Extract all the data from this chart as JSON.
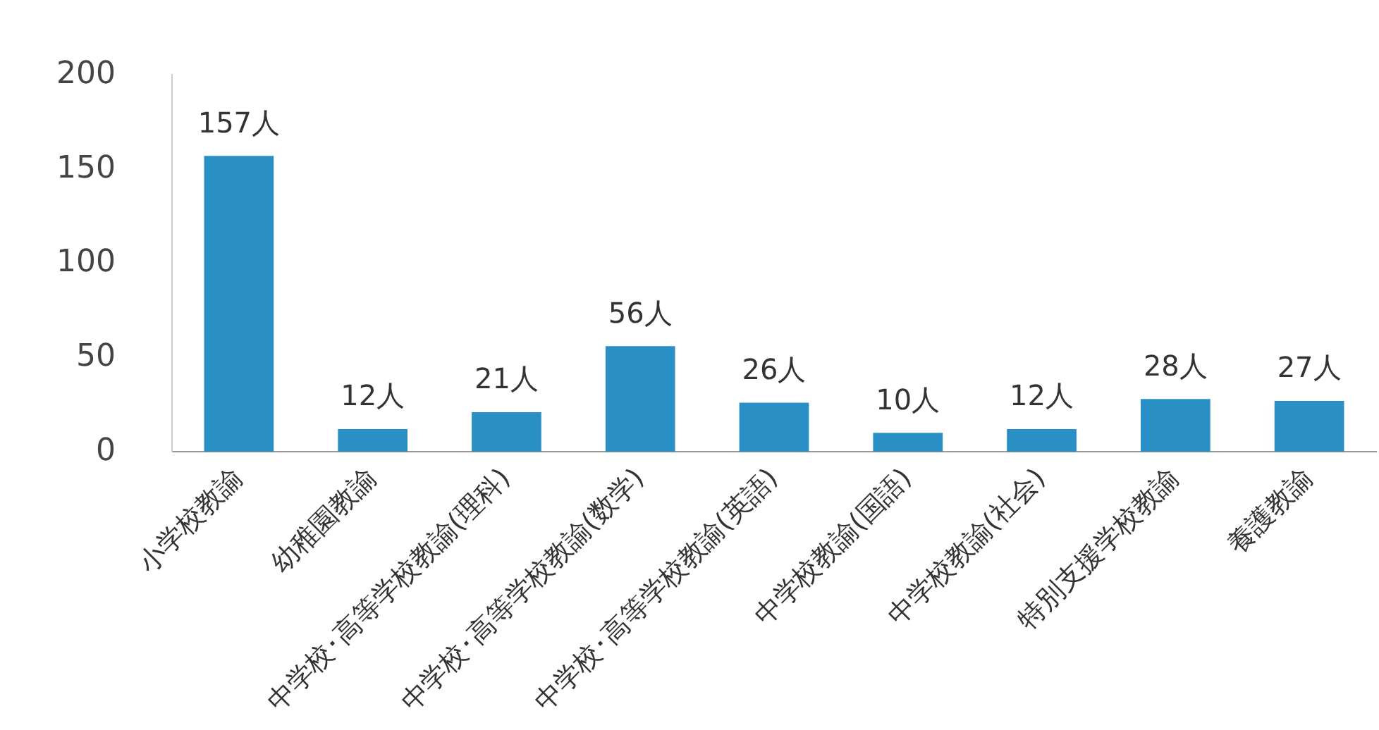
{
  "chart_data": {
    "type": "bar",
    "categories": [
      "小学校教諭",
      "幼稚園教諭",
      "中学校･高等学校教諭(理科)",
      "中学校･高等学校教諭(数学)",
      "中学校･高等学校教諭(英語)",
      "中学校教諭(国語)",
      "中学校教諭(社会)",
      "特別支援学校教諭",
      "養護教諭"
    ],
    "values": [
      157,
      12,
      21,
      56,
      26,
      10,
      12,
      28,
      27
    ],
    "value_labels": [
      "157人",
      "12人",
      "21人",
      "56人",
      "26人",
      "10人",
      "12人",
      "28人",
      "27人"
    ],
    "color": "#2a8fc4",
    "ylim": [
      0,
      200
    ],
    "yticks": [
      0,
      50,
      100,
      150,
      200
    ],
    "grid": false,
    "legend": false
  }
}
